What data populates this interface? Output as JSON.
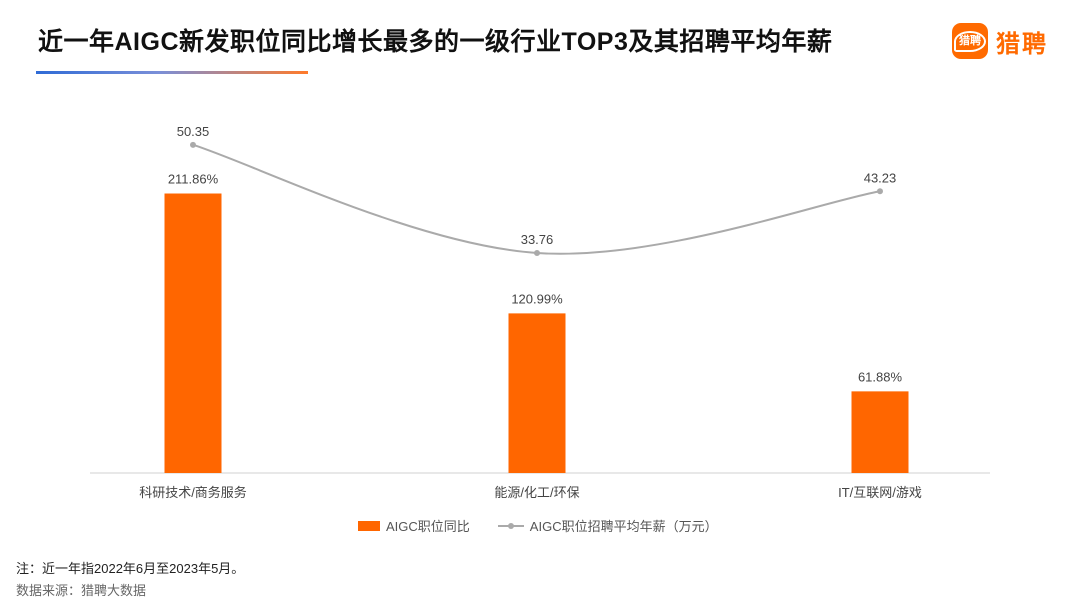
{
  "title": "近一年AIGC新发职位同比增长最多的一级行业TOP3及其招聘平均年薪",
  "logo": {
    "mark_text": "猎聘",
    "text": "猎聘",
    "icon": "chat-bubble-logo-icon",
    "color": "#ff6a00"
  },
  "chart_data": {
    "type": "bar",
    "categories": [
      "科研技术/商务服务",
      "能源/化工/环保",
      "IT/互联网/游戏"
    ],
    "series": [
      {
        "name": "AIGC职位同比",
        "kind": "bar",
        "values": [
          211.86,
          120.99,
          61.88
        ],
        "labels": [
          "211.86%",
          "120.99%",
          "61.88%"
        ],
        "color": "#ff6600"
      },
      {
        "name": "AIGC职位招聘平均年薪（万元）",
        "kind": "line",
        "values": [
          50.35,
          33.76,
          43.23
        ],
        "labels": [
          "50.35",
          "33.76",
          "43.23"
        ],
        "color": "#aaaaaa",
        "smooth": true
      }
    ],
    "bar_axis_range": [
      0,
      260
    ],
    "line_axis_range": [
      0,
      58
    ],
    "legend_position": "bottom-center",
    "grid": false
  },
  "footer": {
    "note": "注：近一年指2022年6月至2023年5月。",
    "source": "数据来源：猎聘大数据"
  }
}
